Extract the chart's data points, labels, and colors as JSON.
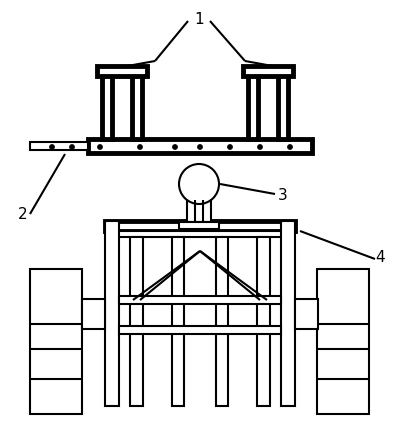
{
  "bg_color": "#ffffff",
  "line_color": "#000000",
  "lw": 1.5,
  "tlw": 3.5,
  "figsize": [
    3.99,
    4.31
  ],
  "dpi": 100
}
